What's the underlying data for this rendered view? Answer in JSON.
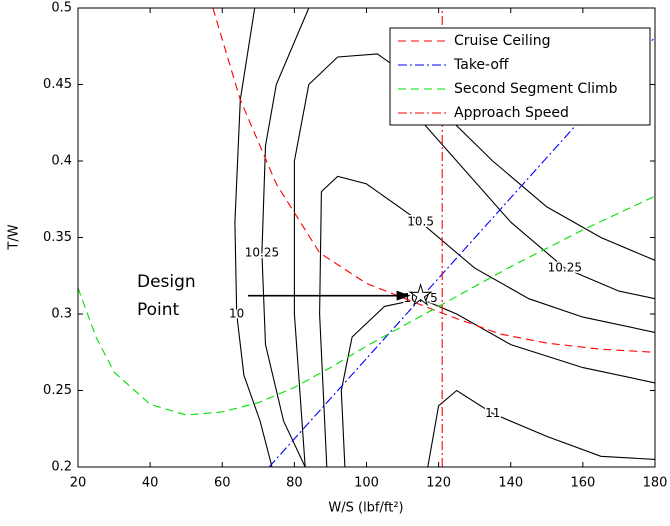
{
  "chart_data": {
    "type": "line",
    "xlabel": "W/S (lbf/ft²)",
    "ylabel": "T/W",
    "xlim": [
      20,
      180
    ],
    "ylim": [
      0.2,
      0.5
    ],
    "xticks": [
      20,
      40,
      60,
      80,
      100,
      120,
      140,
      160,
      180
    ],
    "yticks": [
      0.2,
      0.25,
      0.3,
      0.35,
      0.4,
      0.45,
      0.5
    ],
    "legend": "upper right",
    "series": [
      {
        "name": "Cruise Ceiling",
        "color": "#ff0000",
        "dash": "dashed",
        "x": [
          57.4,
          65,
          75,
          87,
          100,
          115,
          125,
          137,
          150,
          165,
          180
        ],
        "y": [
          0.5,
          0.44,
          0.385,
          0.34,
          0.32,
          0.306,
          0.297,
          0.287,
          0.281,
          0.277,
          0.275
        ]
      },
      {
        "name": "Take-off",
        "color": "#0000ff",
        "dash": "dashdot",
        "x": [
          73,
          180
        ],
        "y": [
          0.2,
          0.481
        ]
      },
      {
        "name": "Second Segment Climb",
        "color": "#00e000",
        "dash": "dashed",
        "x": [
          20,
          25,
          30,
          40,
          50,
          60,
          70,
          80,
          90,
          100,
          110,
          120,
          140,
          160,
          180
        ],
        "y": [
          0.317,
          0.285,
          0.262,
          0.241,
          0.234,
          0.236,
          0.242,
          0.252,
          0.265,
          0.279,
          0.292,
          0.305,
          0.331,
          0.355,
          0.377
        ]
      },
      {
        "name": "Approach Speed",
        "color": "#ff0000",
        "dash": "dashdot",
        "x": [
          121,
          121
        ],
        "y": [
          0.2,
          0.5
        ]
      }
    ],
    "contours": [
      {
        "level": 10,
        "x": [
          69,
          65,
          63.5,
          64,
          66,
          70.5,
          73.8
        ],
        "y": [
          0.5,
          0.44,
          0.36,
          0.3,
          0.26,
          0.23,
          0.2
        ]
      },
      {
        "level": 10,
        "x": [
          83,
          80,
          80,
          84,
          92,
          103,
          112,
          122,
          135,
          150,
          165,
          180
        ],
        "y": [
          0.2,
          0.3,
          0.4,
          0.45,
          0.468,
          0.47,
          0.455,
          0.43,
          0.4,
          0.37,
          0.35,
          0.335
        ]
      },
      {
        "level": 10.25,
        "x": [
          84,
          75,
          72,
          71,
          72,
          77,
          83
        ],
        "y": [
          0.5,
          0.45,
          0.41,
          0.34,
          0.28,
          0.23,
          0.2
        ]
      },
      {
        "level": 10.25,
        "x": [
          110,
          125,
          140,
          155,
          170,
          180
        ],
        "y": [
          0.44,
          0.4,
          0.36,
          0.33,
          0.315,
          0.31
        ]
      },
      {
        "level": 10.5,
        "x": [
          89,
          87,
          87.5,
          92,
          100,
          115,
          130,
          145,
          160,
          180
        ],
        "y": [
          0.2,
          0.3,
          0.38,
          0.39,
          0.385,
          0.36,
          0.33,
          0.31,
          0.298,
          0.288
        ]
      },
      {
        "level": 10.75,
        "x": [
          94,
          93,
          96,
          105,
          115,
          125,
          140,
          160,
          180
        ],
        "y": [
          0.2,
          0.25,
          0.285,
          0.305,
          0.31,
          0.3,
          0.28,
          0.265,
          0.255
        ]
      },
      {
        "level": 11,
        "x": [
          117,
          120,
          125,
          135,
          150,
          165,
          180
        ],
        "y": [
          0.2,
          0.24,
          0.25,
          0.235,
          0.22,
          0.207,
          0.205
        ]
      }
    ],
    "design_point": {
      "x": 115,
      "y": 0.312
    },
    "annotation_lines": [
      "Design",
      "Point"
    ]
  }
}
